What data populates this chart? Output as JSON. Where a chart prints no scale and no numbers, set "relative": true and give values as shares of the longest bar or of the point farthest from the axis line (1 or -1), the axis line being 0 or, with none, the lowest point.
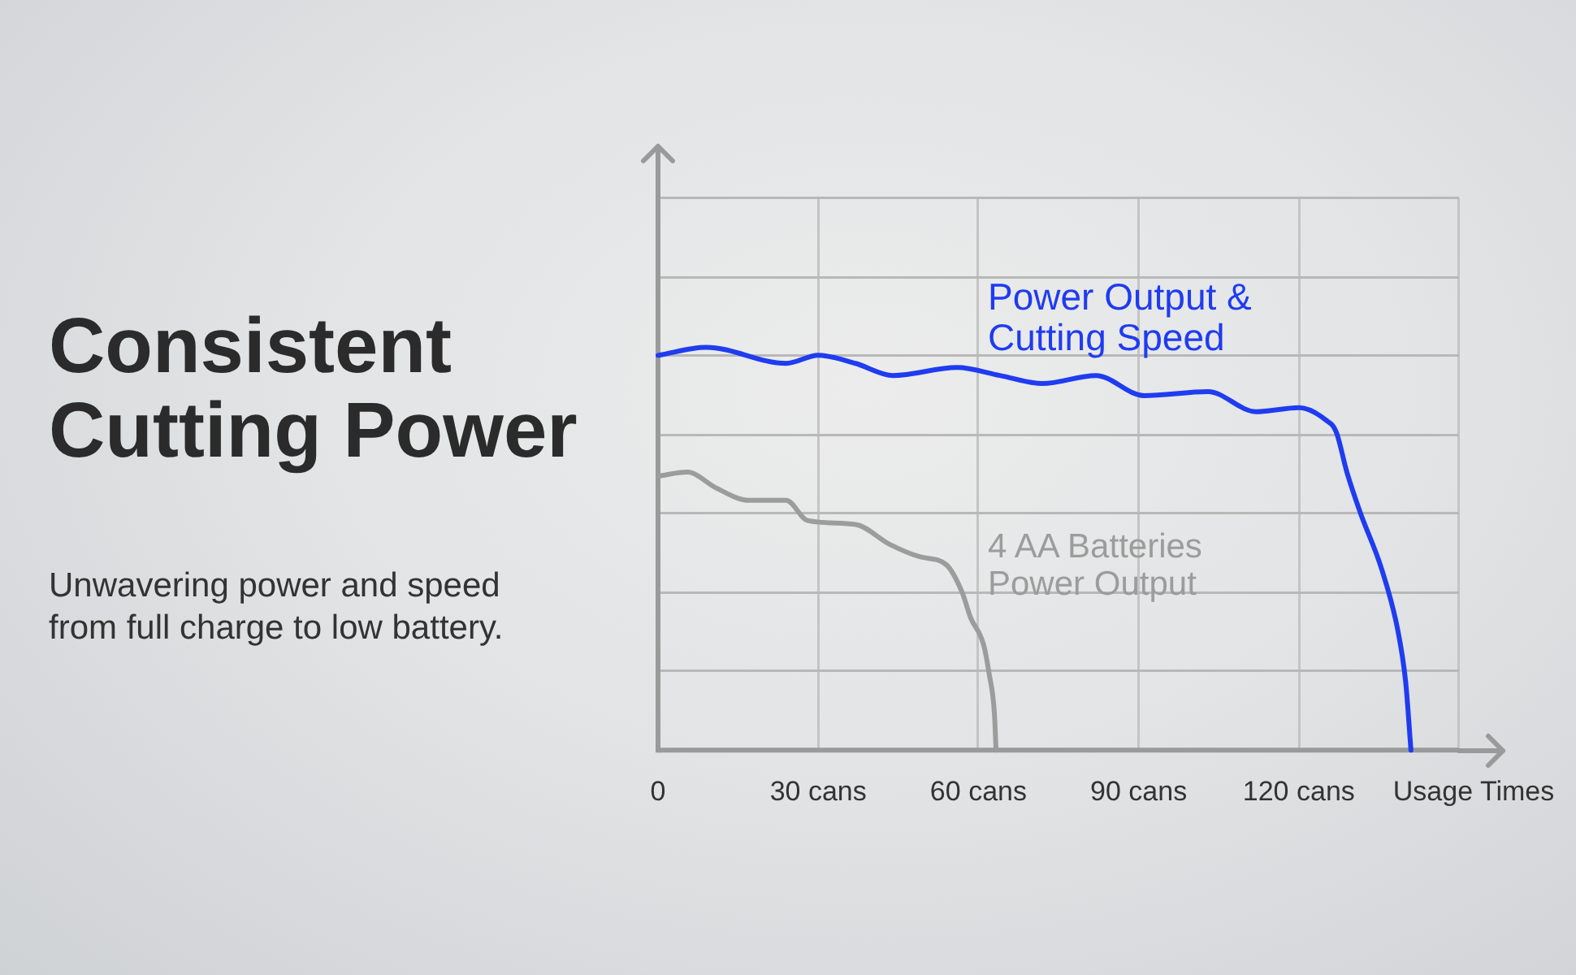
{
  "chart_data": {
    "type": "line",
    "title": "Consistent Cutting Power",
    "subtitle": "Unwavering power and speed from full charge to low battery.",
    "xlabel": "Usage Times",
    "relative": true,
    "xlim": [
      0,
      150
    ],
    "xticks": [
      0,
      {
        "value": 30,
        "label": "30 cans"
      },
      {
        "value": 60,
        "label": "60 cans"
      },
      {
        "value": 90,
        "label": "90 cans"
      },
      {
        "value": 120,
        "label": "120 cans"
      },
      {
        "value": 150,
        "label": null
      }
    ],
    "grid": true,
    "marker": "none",
    "line_style": "solid",
    "series": [
      {
        "name": "Power Output & Cutting Speed",
        "color": "#1f3cf0",
        "x": [
          0,
          9,
          24,
          30,
          37,
          44,
          56,
          64,
          72,
          82,
          91,
          103,
          112,
          120,
          125,
          127,
          129,
          131.5,
          135.5,
          138.5,
          140,
          141
        ],
        "values": [
          0.98,
          1,
          0.96,
          0.98,
          0.96,
          0.93,
          0.95,
          0.93,
          0.91,
          0.93,
          0.88,
          0.89,
          0.84,
          0.85,
          0.82,
          0.79,
          0.69,
          0.59,
          0.45,
          0.3,
          0.17,
          0
        ]
      },
      {
        "name": "4 AA Batteries Power Output",
        "color": "#9c9c9c",
        "x": [
          0,
          5.5,
          11,
          17,
          24,
          28,
          37,
          43.5,
          49,
          54,
          57,
          58.5,
          61,
          62,
          63,
          63.3
        ],
        "values": [
          0.68,
          0.69,
          0.65,
          0.62,
          0.62,
          0.57,
          0.56,
          0.51,
          0.48,
          0.46,
          0.39,
          0.33,
          0.26,
          0.19,
          0.09,
          0
        ]
      }
    ]
  }
}
